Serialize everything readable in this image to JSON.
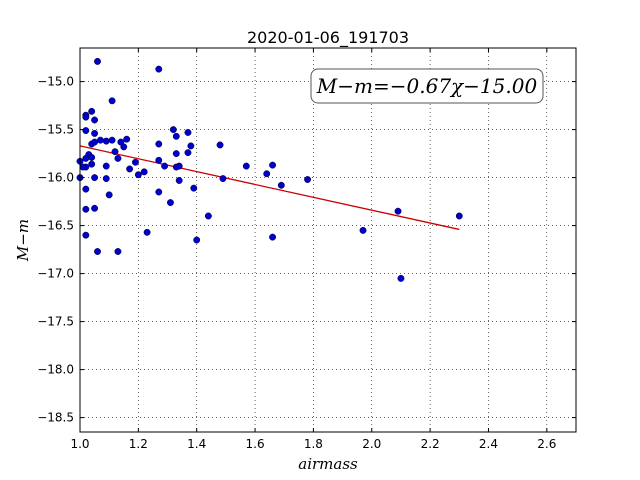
{
  "chart_data": {
    "type": "scatter",
    "title": "2020-01-06_191703",
    "xlabel": "airmass",
    "ylabel": "M−m",
    "annotation": "M−m=−0.67χ−15.00",
    "xlim": [
      1.0,
      2.7
    ],
    "ylim": [
      -18.65,
      -14.65
    ],
    "xticks": [
      1.0,
      1.2,
      1.4,
      1.6,
      1.8,
      2.0,
      2.2,
      2.4,
      2.6
    ],
    "xtick_labels": [
      "1.0",
      "1.2",
      "1.4",
      "1.6",
      "1.8",
      "2.0",
      "2.2",
      "2.4",
      "2.6"
    ],
    "yticks": [
      -15.0,
      -15.5,
      -16.0,
      -16.5,
      -17.0,
      -17.5,
      -18.0,
      -18.5
    ],
    "ytick_labels": [
      "−15.0",
      "−15.5",
      "−16.0",
      "−16.5",
      "−17.0",
      "−17.5",
      "−18.0",
      "−18.5"
    ],
    "grid": true,
    "point_color": "#0000cc",
    "fit_color": "#cc0000",
    "fit_line": {
      "x": [
        1.0,
        2.3
      ],
      "y": [
        -15.67,
        -16.54
      ]
    },
    "points": [
      [
        1.06,
        -14.79
      ],
      [
        1.27,
        -14.87
      ],
      [
        1.11,
        -15.2
      ],
      [
        1.02,
        -15.35
      ],
      [
        1.02,
        -15.37
      ],
      [
        1.04,
        -15.31
      ],
      [
        1.05,
        -15.4
      ],
      [
        1.02,
        -15.51
      ],
      [
        1.05,
        -15.54
      ],
      [
        1.07,
        -15.61
      ],
      [
        1.09,
        -15.62
      ],
      [
        1.11,
        -15.61
      ],
      [
        1.04,
        -15.65
      ],
      [
        1.05,
        -15.63
      ],
      [
        1.03,
        -15.76
      ],
      [
        1.04,
        -15.79
      ],
      [
        1.02,
        -15.8
      ],
      [
        1.14,
        -15.63
      ],
      [
        1.15,
        -15.68
      ],
      [
        1.16,
        -15.6
      ],
      [
        1.12,
        -15.73
      ],
      [
        1.13,
        -15.8
      ],
      [
        1.04,
        -15.86
      ],
      [
        1.02,
        -15.89
      ],
      [
        1.09,
        -15.88
      ],
      [
        1.17,
        -15.91
      ],
      [
        1.19,
        -15.84
      ],
      [
        1.0,
        -15.83
      ],
      [
        1.01,
        -15.89
      ],
      [
        1.0,
        -16.0
      ],
      [
        1.05,
        -16.0
      ],
      [
        1.09,
        -16.01
      ],
      [
        1.2,
        -15.97
      ],
      [
        1.22,
        -15.94
      ],
      [
        1.27,
        -15.65
      ],
      [
        1.27,
        -15.82
      ],
      [
        1.29,
        -15.88
      ],
      [
        1.32,
        -15.5
      ],
      [
        1.33,
        -15.57
      ],
      [
        1.33,
        -15.75
      ],
      [
        1.33,
        -15.89
      ],
      [
        1.34,
        -15.88
      ],
      [
        1.37,
        -15.53
      ],
      [
        1.37,
        -15.74
      ],
      [
        1.38,
        -15.67
      ],
      [
        1.34,
        -16.03
      ],
      [
        1.39,
        -16.11
      ],
      [
        1.02,
        -16.12
      ],
      [
        1.1,
        -16.18
      ],
      [
        1.27,
        -16.15
      ],
      [
        1.31,
        -16.26
      ],
      [
        1.02,
        -16.33
      ],
      [
        1.05,
        -16.32
      ],
      [
        1.48,
        -15.66
      ],
      [
        1.49,
        -16.01
      ],
      [
        1.57,
        -15.88
      ],
      [
        1.64,
        -15.96
      ],
      [
        1.66,
        -15.87
      ],
      [
        1.69,
        -16.08
      ],
      [
        1.78,
        -16.02
      ],
      [
        1.44,
        -16.4
      ],
      [
        1.23,
        -16.57
      ],
      [
        1.02,
        -16.6
      ],
      [
        1.4,
        -16.65
      ],
      [
        1.66,
        -16.62
      ],
      [
        1.06,
        -16.77
      ],
      [
        1.13,
        -16.77
      ],
      [
        1.97,
        -16.55
      ],
      [
        2.09,
        -16.35
      ],
      [
        2.3,
        -16.4
      ],
      [
        2.1,
        -17.05
      ]
    ]
  }
}
